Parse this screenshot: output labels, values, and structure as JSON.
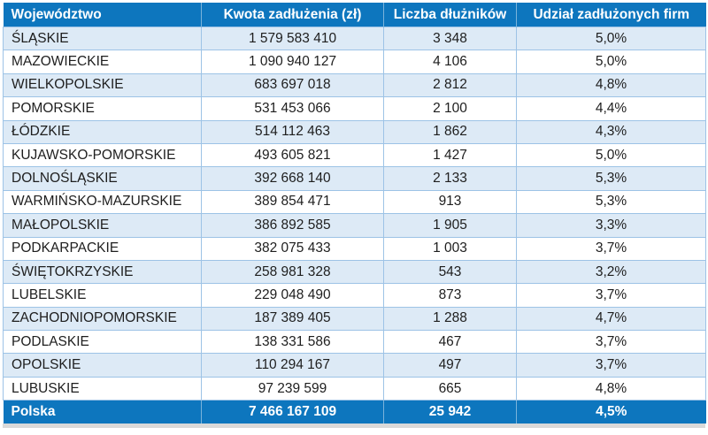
{
  "colors": {
    "header_bg": "#0D76BE",
    "row_alt_bg": "#DDEAF6",
    "grid_border": "#9DC3E6",
    "body_text": "#1E1E1E",
    "header_text": "#FFFFFF",
    "shadow_strip": "#D9D9D9"
  },
  "chart_data": {
    "type": "table",
    "columns": [
      "Województwo",
      "Kwota zadłużenia (zł)",
      "Liczba dłużników",
      "Udział zadłużonych firm"
    ],
    "rows": [
      [
        "ŚLĄSKIE",
        "1 579 583 410",
        "3 348",
        "5,0%"
      ],
      [
        "MAZOWIECKIE",
        "1 090 940 127",
        "4 106",
        "5,0%"
      ],
      [
        "WIELKOPOLSKIE",
        "683 697 018",
        "2 812",
        "4,8%"
      ],
      [
        "POMORSKIE",
        "531 453 066",
        "2 100",
        "4,4%"
      ],
      [
        "ŁÓDZKIE",
        "514 112 463",
        "1 862",
        "4,3%"
      ],
      [
        "KUJAWSKO-POMORSKIE",
        "493 605 821",
        "1 427",
        "5,0%"
      ],
      [
        "DOLNOŚLĄSKIE",
        "392 668 140",
        "2 133",
        "5,3%"
      ],
      [
        "WARMIŃSKO-MAZURSKIE",
        "389 854 471",
        "913",
        "5,3%"
      ],
      [
        "MAŁOPOLSKIE",
        "386 892 585",
        "1 905",
        "3,3%"
      ],
      [
        "PODKARPACKIE",
        "382 075 433",
        "1 003",
        "3,7%"
      ],
      [
        "ŚWIĘTOKRZYSKIE",
        "258 981 328",
        "543",
        "3,2%"
      ],
      [
        "LUBELSKIE",
        "229 048 490",
        "873",
        "3,7%"
      ],
      [
        "ZACHODNIOPOMORSKIE",
        "187 389 405",
        "1 288",
        "4,7%"
      ],
      [
        "PODLASKIE",
        "138 331 586",
        "467",
        "3,7%"
      ],
      [
        "OPOLSKIE",
        "110 294 167",
        "497",
        "3,7%"
      ],
      [
        "LUBUSKIE",
        "97 239 599",
        "665",
        "4,8%"
      ]
    ],
    "total_row": [
      "Polska",
      "7 466 167 109",
      "25 942",
      "4,5%"
    ],
    "layout": {
      "striped": true,
      "stripe_starts_on_first_row": true,
      "grid": true
    }
  }
}
